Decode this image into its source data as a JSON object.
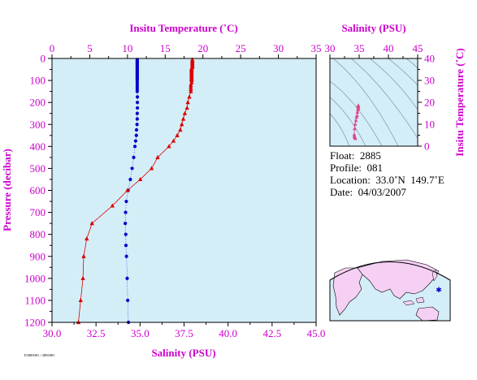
{
  "chart_data": [
    {
      "type": "scatter",
      "top_axis_label": "Insitu Temperature (˚C)",
      "top_ticks": [
        "0",
        "5",
        "10",
        "15",
        "20",
        "25",
        "30",
        "35"
      ],
      "top_range": [
        0,
        35
      ],
      "xlabel": "Salinity (PSU)",
      "x_ticks": [
        "30.0",
        "32.5",
        "35.0",
        "37.5",
        "40.0",
        "42.5",
        "45.0"
      ],
      "x_range": [
        30,
        45
      ],
      "ylabel": "Pressure (decibar)",
      "y_ticks": [
        "0",
        "100",
        "200",
        "300",
        "400",
        "500",
        "600",
        "700",
        "800",
        "900",
        "1000",
        "1100",
        "1200"
      ],
      "ylim": [
        0,
        1200
      ],
      "y_reversed": true,
      "series": [
        {
          "marker": "circle",
          "color": "#0000cc",
          "axis": "bottom",
          "points": [
            [
              34.84,
              5
            ],
            [
              34.84,
              10
            ],
            [
              34.84,
              15
            ],
            [
              34.84,
              20
            ],
            [
              34.84,
              25
            ],
            [
              34.84,
              30
            ],
            [
              34.84,
              35
            ],
            [
              34.84,
              40
            ],
            [
              34.84,
              45
            ],
            [
              34.84,
              50
            ],
            [
              34.84,
              55
            ],
            [
              34.84,
              60
            ],
            [
              34.84,
              65
            ],
            [
              34.84,
              70
            ],
            [
              34.84,
              75
            ],
            [
              34.84,
              80
            ],
            [
              34.84,
              85
            ],
            [
              34.84,
              90
            ],
            [
              34.84,
              95
            ],
            [
              34.84,
              100
            ],
            [
              34.84,
              110
            ],
            [
              34.84,
              120
            ],
            [
              34.84,
              130
            ],
            [
              34.84,
              140
            ],
            [
              34.84,
              150
            ],
            [
              34.85,
              175
            ],
            [
              34.85,
              200
            ],
            [
              34.85,
              225
            ],
            [
              34.84,
              250
            ],
            [
              34.84,
              275
            ],
            [
              34.83,
              300
            ],
            [
              34.8,
              325
            ],
            [
              34.79,
              350
            ],
            [
              34.75,
              375
            ],
            [
              34.71,
              400
            ],
            [
              34.64,
              450
            ],
            [
              34.55,
              500
            ],
            [
              34.45,
              550
            ],
            [
              34.32,
              600
            ],
            [
              34.22,
              650
            ],
            [
              34.18,
              700
            ],
            [
              34.16,
              750
            ],
            [
              34.19,
              800
            ],
            [
              34.2,
              850
            ],
            [
              34.23,
              900
            ],
            [
              34.27,
              1000
            ],
            [
              34.3,
              1100
            ],
            [
              34.34,
              1200
            ]
          ]
        },
        {
          "marker": "triangle",
          "color": "#dd0000",
          "axis": "top",
          "points": [
            [
              18.6,
              5
            ],
            [
              18.6,
              10
            ],
            [
              18.6,
              15
            ],
            [
              18.6,
              20
            ],
            [
              18.6,
              25
            ],
            [
              18.6,
              30
            ],
            [
              18.6,
              35
            ],
            [
              18.6,
              40
            ],
            [
              18.5,
              45
            ],
            [
              18.5,
              50
            ],
            [
              18.5,
              55
            ],
            [
              18.5,
              60
            ],
            [
              18.5,
              65
            ],
            [
              18.5,
              70
            ],
            [
              18.5,
              75
            ],
            [
              18.5,
              80
            ],
            [
              18.5,
              85
            ],
            [
              18.5,
              90
            ],
            [
              18.5,
              95
            ],
            [
              18.5,
              100
            ],
            [
              18.5,
              110
            ],
            [
              18.4,
              120
            ],
            [
              18.4,
              130
            ],
            [
              18.4,
              140
            ],
            [
              18.4,
              150
            ],
            [
              18.2,
              175
            ],
            [
              18.0,
              200
            ],
            [
              17.9,
              225
            ],
            [
              17.6,
              250
            ],
            [
              17.4,
              275
            ],
            [
              17.2,
              300
            ],
            [
              17.0,
              325
            ],
            [
              16.6,
              350
            ],
            [
              16.1,
              375
            ],
            [
              15.5,
              400
            ],
            [
              14.0,
              450
            ],
            [
              13.2,
              500
            ],
            [
              11.7,
              550
            ],
            [
              10.0,
              600
            ],
            [
              8.0,
              670
            ],
            [
              5.3,
              750
            ],
            [
              4.6,
              820
            ],
            [
              4.2,
              900
            ],
            [
              4.1,
              1000
            ],
            [
              3.8,
              1100
            ],
            [
              3.5,
              1200
            ]
          ]
        }
      ]
    },
    {
      "type": "scatter",
      "top_axis_label": "Salinity (PSU)",
      "x_ticks": [
        "30",
        "35",
        "40",
        "45"
      ],
      "x_range": [
        30,
        45
      ],
      "ylabel": "Insitu Temperature (˚C)",
      "y_ticks": [
        "0",
        "10",
        "20",
        "30",
        "40"
      ],
      "ylim": [
        0,
        40
      ],
      "series": [
        {
          "marker": "triangle",
          "color": "#e0488a",
          "points": [
            [
              34.84,
              18.6
            ],
            [
              34.84,
              18.5
            ],
            [
              34.85,
              18.3
            ],
            [
              34.85,
              18.0
            ],
            [
              34.84,
              17.6
            ],
            [
              34.83,
              17.2
            ],
            [
              34.79,
              16.6
            ],
            [
              34.71,
              15.5
            ],
            [
              34.64,
              14.0
            ],
            [
              34.55,
              13.2
            ],
            [
              34.45,
              11.7
            ],
            [
              34.32,
              10.0
            ],
            [
              34.22,
              8.0
            ],
            [
              34.16,
              5.3
            ],
            [
              34.19,
              4.6
            ],
            [
              34.23,
              4.2
            ],
            [
              34.27,
              4.1
            ],
            [
              34.3,
              3.8
            ],
            [
              34.34,
              3.5
            ]
          ]
        }
      ]
    }
  ],
  "info": {
    "float": "Float:  2885",
    "profile": "Profile:  081",
    "location": "Location:  33.0˚N  149.7˚E",
    "date": "Date:  04/03/2007"
  },
  "footer_code": "P2885081 / 2885081",
  "colors": {
    "axis": "#cc00cc",
    "plot_bg": "#d4eef8",
    "land": "#f6d0f4",
    "ocean": "#d4eef8"
  }
}
